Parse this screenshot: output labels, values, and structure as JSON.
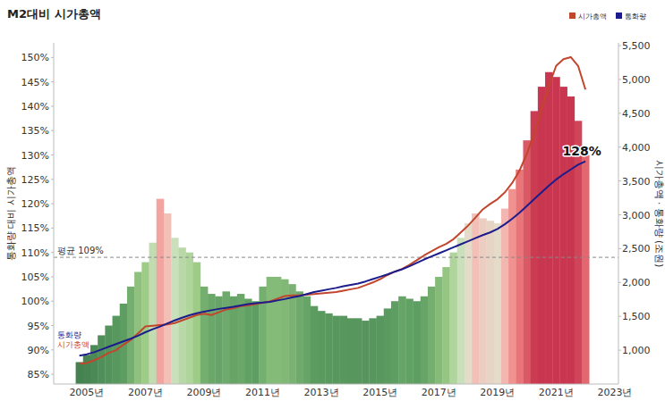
{
  "chart_data": {
    "type": "bar",
    "title": "M2대비 시가총액",
    "y_label": "통화량 대비 시가총액",
    "y2_label": "시가총액 · 통화량 (조원)",
    "legend": "top-right",
    "categories": [
      null,
      null,
      null,
      null,
      "2005년",
      null,
      null,
      null,
      null,
      null,
      null,
      null,
      "2007년",
      null,
      null,
      null,
      null,
      null,
      null,
      null,
      "2009년",
      null,
      null,
      null,
      null,
      null,
      null,
      null,
      "2011년",
      null,
      null,
      null,
      null,
      null,
      null,
      null,
      "2013년",
      null,
      null,
      null,
      null,
      null,
      null,
      null,
      "2015년",
      null,
      null,
      null,
      null,
      null,
      null,
      null,
      "2017년",
      null,
      null,
      null,
      null,
      null,
      null,
      null,
      "2019년",
      null,
      null,
      null,
      null,
      null,
      null,
      null,
      "2021년",
      null,
      null,
      null,
      null,
      null,
      null,
      null,
      "2023년"
    ],
    "series": [
      {
        "type": "bar",
        "values": [
          null,
          null,
          null,
          87.5,
          89,
          91,
          93,
          95,
          97,
          99.5,
          103,
          106,
          108,
          112,
          121,
          118,
          113,
          111,
          110,
          108,
          103,
          101.5,
          101,
          102,
          101,
          101.5,
          100.5,
          100,
          103,
          105,
          105,
          104.5,
          103.5,
          102,
          101,
          99,
          98,
          97.5,
          97,
          97,
          96.5,
          96.5,
          96,
          96.5,
          97,
          98.5,
          100,
          101,
          100.5,
          100,
          101,
          103,
          105,
          107,
          110,
          113,
          116,
          118,
          117,
          116.5,
          116,
          119,
          123,
          127,
          133,
          139,
          144,
          147,
          146,
          144,
          142,
          137,
          130,
          null,
          null,
          null,
          null
        ]
      },
      {
        "name": "시가총액",
        "type": "line",
        "axis": "y2",
        "color": "#c2452d",
        "values": [
          null,
          null,
          null,
          800,
          810,
          850,
          900,
          960,
          1000,
          1080,
          1150,
          1250,
          1350,
          1360,
          1370,
          1380,
          1400,
          1440,
          1480,
          1520,
          1540,
          1520,
          1560,
          1600,
          1620,
          1650,
          1660,
          1680,
          1700,
          1720,
          1760,
          1800,
          1810,
          1810,
          1820,
          1830,
          1840,
          1850,
          1860,
          1880,
          1900,
          1920,
          1960,
          2000,
          2050,
          2110,
          2160,
          2200,
          2260,
          2330,
          2400,
          2460,
          2520,
          2570,
          2640,
          2740,
          2840,
          2960,
          3080,
          3160,
          3230,
          3330,
          3470,
          3650,
          3900,
          4200,
          4550,
          4900,
          5200,
          5300,
          5330,
          5200,
          4850,
          null,
          null,
          null,
          null
        ]
      },
      {
        "name": "통화량",
        "type": "line",
        "axis": "y2",
        "color": "#1c1c8c",
        "values": [
          null,
          null,
          null,
          920,
          940,
          970,
          1010,
          1050,
          1090,
          1130,
          1170,
          1215,
          1265,
          1310,
          1350,
          1395,
          1440,
          1480,
          1515,
          1545,
          1570,
          1590,
          1610,
          1625,
          1640,
          1660,
          1680,
          1695,
          1705,
          1715,
          1735,
          1755,
          1780,
          1800,
          1830,
          1860,
          1880,
          1900,
          1920,
          1945,
          1965,
          1985,
          2015,
          2050,
          2085,
          2120,
          2160,
          2195,
          2240,
          2290,
          2340,
          2385,
          2430,
          2475,
          2520,
          2565,
          2610,
          2655,
          2700,
          2740,
          2790,
          2860,
          2940,
          3030,
          3130,
          3230,
          3330,
          3430,
          3520,
          3600,
          3670,
          3740,
          3790,
          null,
          null,
          null,
          null
        ]
      }
    ],
    "ylim": [
      83,
      153
    ],
    "yticks": [
      {
        "value": 85,
        "label": "85%"
      },
      {
        "value": 90,
        "label": "90%"
      },
      {
        "value": 95,
        "label": "95%"
      },
      {
        "value": 100,
        "label": "100%"
      },
      {
        "value": 105,
        "label": "105%"
      },
      {
        "value": 110,
        "label": "110%"
      },
      {
        "value": 115,
        "label": "115%"
      },
      {
        "value": 120,
        "label": "120%"
      },
      {
        "value": 125,
        "label": "125%"
      },
      {
        "value": 130,
        "label": "130%"
      },
      {
        "value": 135,
        "label": "135%"
      },
      {
        "value": 140,
        "label": "140%"
      },
      {
        "value": 145,
        "label": "145%"
      },
      {
        "value": 150,
        "label": "150%"
      }
    ],
    "y2lim": [
      500,
      5540
    ],
    "y2ticks": [
      {
        "value": 1000,
        "label": "1,000"
      },
      {
        "value": 1500,
        "label": "1,500"
      },
      {
        "value": 2000,
        "label": "2,000"
      },
      {
        "value": 2500,
        "label": "2,500"
      },
      {
        "value": 3000,
        "label": "3,000"
      },
      {
        "value": 3500,
        "label": "3,500"
      },
      {
        "value": 4000,
        "label": "4,000"
      },
      {
        "value": 4500,
        "label": "4,500"
      },
      {
        "value": 5000,
        "label": "5,000"
      },
      {
        "value": 5500,
        "label": "5,500"
      }
    ],
    "reference_lines": [
      {
        "value": 109,
        "label": "평균 109%"
      }
    ],
    "annotations": [
      {
        "text": "128%",
        "value": 128
      }
    ],
    "grid": false
  }
}
